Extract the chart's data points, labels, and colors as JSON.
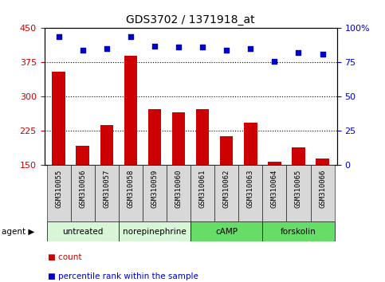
{
  "title": "GDS3702 / 1371918_at",
  "samples": [
    "GSM310055",
    "GSM310056",
    "GSM310057",
    "GSM310058",
    "GSM310059",
    "GSM310060",
    "GSM310061",
    "GSM310062",
    "GSM310063",
    "GSM310064",
    "GSM310065",
    "GSM310066"
  ],
  "counts": [
    355,
    192,
    237,
    390,
    272,
    265,
    272,
    213,
    243,
    158,
    188,
    165
  ],
  "percentiles": [
    94,
    84,
    85,
    94,
    87,
    86,
    86,
    84,
    85,
    76,
    82,
    81
  ],
  "ylim_left": [
    150,
    450
  ],
  "ylim_right": [
    0,
    100
  ],
  "yticks_left": [
    150,
    225,
    300,
    375,
    450
  ],
  "yticks_right": [
    0,
    25,
    50,
    75,
    100
  ],
  "hlines": [
    225,
    300,
    375
  ],
  "agent_groups": [
    {
      "label": "untreated",
      "start": 0,
      "end": 3,
      "color": "#d8f5d8"
    },
    {
      "label": "norepinephrine",
      "start": 3,
      "end": 6,
      "color": "#d8f5d8"
    },
    {
      "label": "cAMP",
      "start": 6,
      "end": 9,
      "color": "#66dd66"
    },
    {
      "label": "forskolin",
      "start": 9,
      "end": 12,
      "color": "#66dd66"
    }
  ],
  "bar_color": "#cc0000",
  "dot_color": "#0000cc",
  "bar_width": 0.55,
  "legend_count_label": "count",
  "legend_pct_label": "percentile rank within the sample",
  "left_tick_color": "#cc0000",
  "right_tick_color": "#0000cc",
  "agent_label": "agent",
  "xlim": [
    -0.6,
    11.6
  ],
  "sample_box_color": "#d8d8d8"
}
